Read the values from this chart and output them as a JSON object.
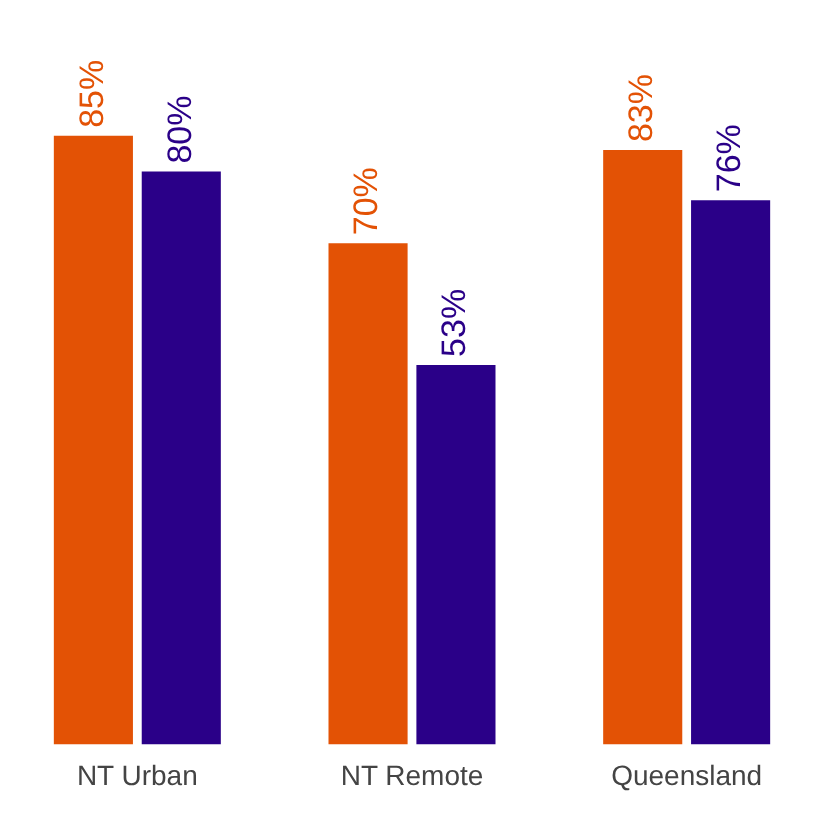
{
  "chart_data": {
    "type": "bar",
    "categories": [
      "NT Urban",
      "NT Remote",
      "Queensland"
    ],
    "series": [
      {
        "color": "#e35205",
        "values": [
          85,
          70,
          83
        ],
        "value_labels": [
          "85%",
          "70%",
          "83%"
        ]
      },
      {
        "color": "#2a0088",
        "values": [
          80,
          53,
          76
        ],
        "value_labels": [
          "80%",
          "53%",
          "76%"
        ]
      }
    ],
    "grid": false,
    "legend": false
  }
}
